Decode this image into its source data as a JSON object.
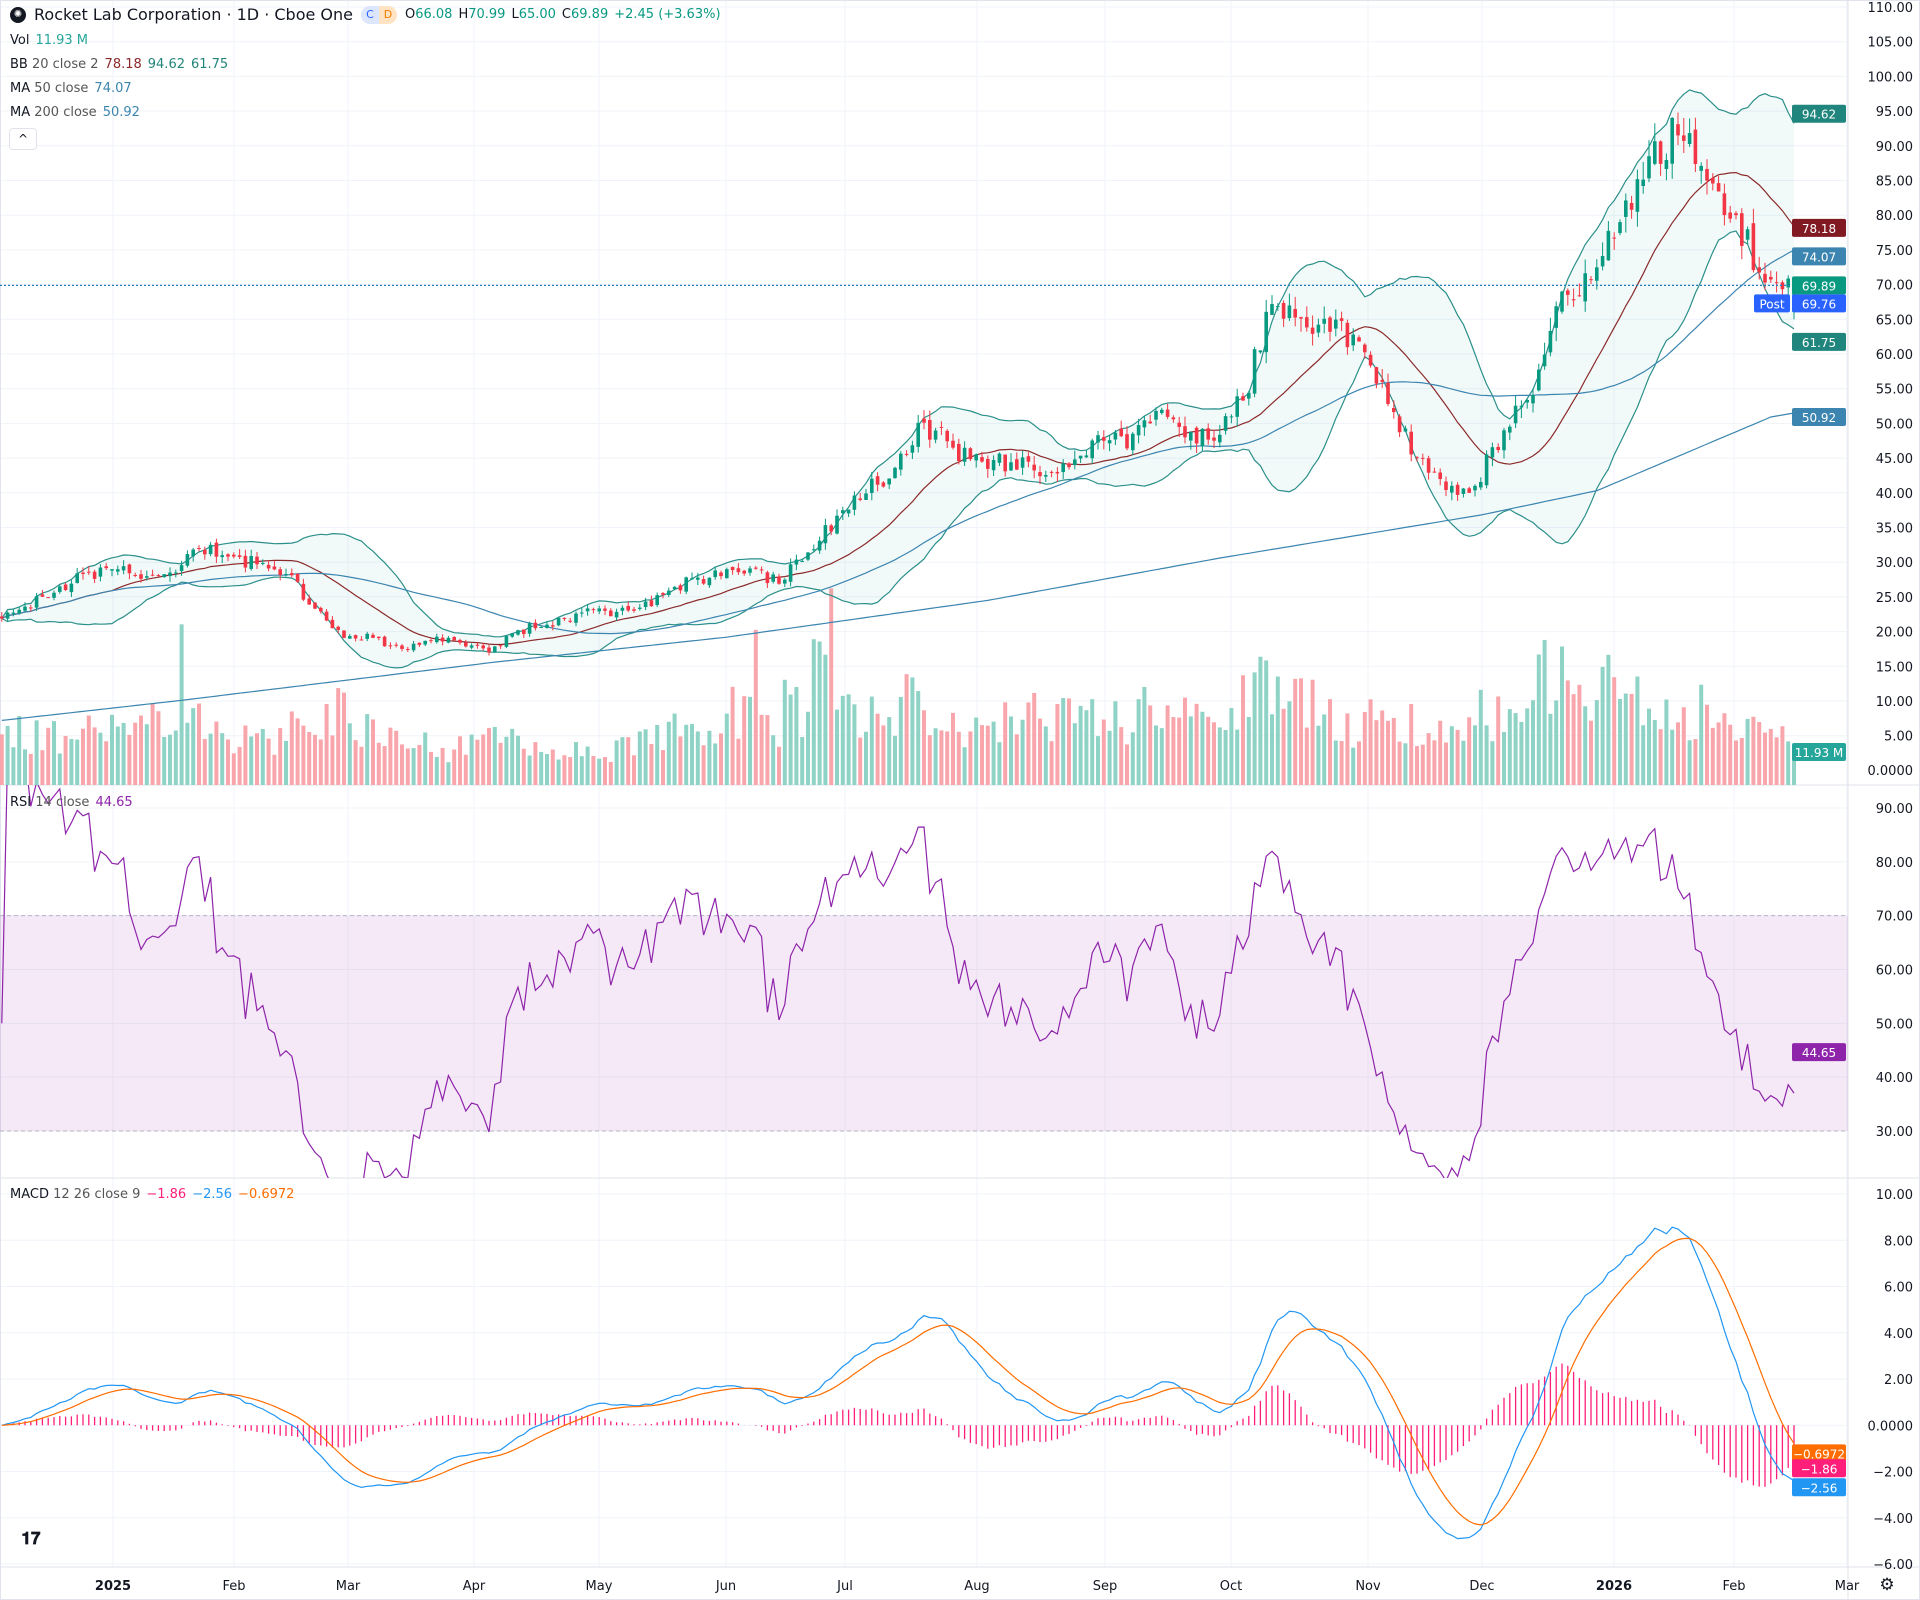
{
  "header": {
    "title": "Rocket Lab Corporation · 1D · Cboe One",
    "badge_c": "C",
    "badge_d": "D",
    "open_label": "O",
    "open": "66.08",
    "high_label": "H",
    "high": "70.99",
    "low_label": "L",
    "low": "65.00",
    "close_label": "C",
    "close": "69.89",
    "change": "+2.45 (+3.63%)"
  },
  "indicators": {
    "vol": {
      "label": "Vol",
      "value": "11.93 M"
    },
    "bb": {
      "label": "BB",
      "params": "20 close 2",
      "basis": "78.18",
      "upper": "94.62",
      "lower": "61.75"
    },
    "ma50": {
      "label": "MA",
      "params": "50 close",
      "value": "74.07"
    },
    "ma200": {
      "label": "MA",
      "params": "200 close",
      "value": "50.92"
    },
    "rsi": {
      "label": "RSI",
      "params": "14 close",
      "value": "44.65"
    },
    "macd": {
      "label": "MACD",
      "params": "12 26 close 9",
      "hist": "−1.86",
      "macd": "−2.56",
      "signal": "−0.6972"
    }
  },
  "collapse_icon": "^",
  "price_axis": {
    "ticks": [
      "110.00",
      "105.00",
      "100.00",
      "95.00",
      "90.00",
      "85.00",
      "80.00",
      "75.00",
      "70.00",
      "65.00",
      "60.00",
      "55.00",
      "50.00",
      "45.00",
      "40.00",
      "35.00",
      "30.00",
      "25.00",
      "20.00",
      "15.00",
      "10.00",
      "5.00"
    ],
    "volume_zero": "0.0000"
  },
  "rsi_axis": {
    "ticks": [
      "90.00",
      "80.00",
      "70.00",
      "60.00",
      "50.00",
      "40.00",
      "30.00"
    ]
  },
  "macd_axis": {
    "ticks": [
      "10.00",
      "8.00",
      "6.00",
      "4.00",
      "2.00",
      "0.0000",
      "−2.00",
      "−4.00",
      "−6.00"
    ]
  },
  "time_axis": {
    "labels": [
      "2025",
      "Feb",
      "Mar",
      "Apr",
      "May",
      "Jun",
      "Jul",
      "Aug",
      "Sep",
      "Oct",
      "Nov",
      "Dec",
      "2026",
      "Feb",
      "Mar"
    ]
  },
  "price_tags": {
    "bb_upper": "94.62",
    "bb_basis": "78.18",
    "ma50": "74.07",
    "last": "69.89",
    "post_label": "Post",
    "post": "69.76",
    "bb_lower": "61.75",
    "ma200": "50.92",
    "volume": "11.93 M",
    "rsi": "44.65",
    "macd_signal": "−0.6972",
    "macd_hist": "−1.86",
    "macd_line": "−2.56"
  },
  "colors": {
    "up": "#089981",
    "down": "#f23645",
    "vol_up": "#8fd3c6",
    "vol_down": "#f8a6ab",
    "bb_band": "#2b8f8a",
    "bb_basis": "#8b2a2a",
    "ma50": "#3c85b0",
    "ma200": "#3c85b0",
    "rsi": "#8e24aa",
    "macd": "#2196f3",
    "signal": "#ff6d00",
    "hist": "#ff1e7a",
    "post": "#2962ff"
  },
  "chart_data": {
    "type": "candlestick",
    "symbol": "Rocket Lab Corporation",
    "interval": "1D",
    "last_bar": {
      "open": 66.08,
      "high": 70.99,
      "low": 65.0,
      "close": 69.89,
      "volume_m": 11.93
    },
    "price_range": [
      0,
      110
    ],
    "weekly_close": [
      23.6,
      25.6,
      28.3,
      29.0,
      27.6,
      28.5,
      31.9,
      30.8,
      29.7,
      28.3,
      23.3,
      19.1,
      19.1,
      17.5,
      18.7,
      18.4,
      17.0,
      20.2,
      21.0,
      22.6,
      23.0,
      23.0,
      25.3,
      27.7,
      28.0,
      29.1,
      26.9,
      31.4,
      36.7,
      39.9,
      43.6,
      50.1,
      46.5,
      44.5,
      44.4,
      42.4,
      43.7,
      48.3,
      46.4,
      51.8,
      48.0,
      47.5,
      53.3,
      67.2,
      65.1,
      63.2,
      61.8,
      52.8,
      45.1,
      40.4,
      41.0,
      49.0,
      54.1,
      69.0,
      70.7,
      79.0,
      88.5,
      91.5,
      85.0,
      80.0,
      70.3,
      69.89
    ],
    "weekly_avg_volume_m": [
      18,
      17,
      16,
      20,
      18,
      28,
      22,
      18,
      17,
      16,
      20,
      24,
      22,
      17,
      14,
      13,
      16,
      15,
      13,
      12,
      12,
      13,
      16,
      20,
      17,
      26,
      20,
      28,
      38,
      24,
      28,
      30,
      22,
      18,
      22,
      25,
      24,
      26,
      23,
      27,
      24,
      22,
      30,
      38,
      32,
      25,
      22,
      25,
      22,
      20,
      18,
      26,
      33,
      40,
      30,
      36,
      32,
      30,
      26,
      22,
      22,
      17
    ],
    "volume_spikes": [
      {
        "bar": 31,
        "volume_m": 58
      },
      {
        "bar": 58,
        "volume_m": 35
      },
      {
        "bar": 130,
        "volume_m": 56
      },
      {
        "bar": 143,
        "volume_m": 71
      },
      {
        "bar": 226,
        "volume_m": 38
      },
      {
        "bar": 269,
        "volume_m": 50
      }
    ],
    "ma200_weekly": [
      {
        "week": 0,
        "value": 7.2
      },
      {
        "week": 6,
        "value": 10.0
      },
      {
        "week": 17,
        "value": 15.6
      },
      {
        "week": 25,
        "value": 19.2
      },
      {
        "week": 34,
        "value": 24.5
      },
      {
        "week": 42,
        "value": 30.6
      },
      {
        "week": 51,
        "value": 36.8
      },
      {
        "week": 55,
        "value": 40.3
      },
      {
        "week": 61,
        "value": 50.92
      }
    ],
    "rsi_bands": {
      "upper": 70,
      "lower": 30,
      "range": [
        25,
        95
      ]
    },
    "macd_range": [
      -6.5,
      10.5
    ]
  }
}
